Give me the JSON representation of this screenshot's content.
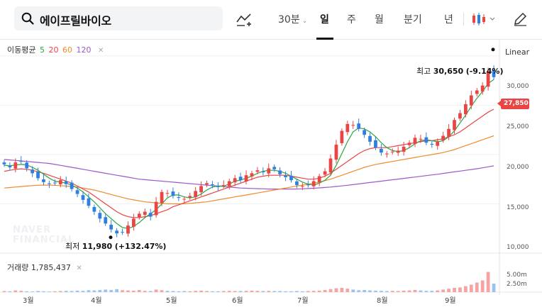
{
  "search": {
    "query": "에이프릴바이오"
  },
  "toolbar": {
    "interval_label": "30분",
    "periods": [
      "일",
      "주",
      "월",
      "분기",
      "년"
    ],
    "active_period": "일",
    "icons": [
      "chart-drawing-icon",
      "candlestick-icon",
      "pencil-icon"
    ]
  },
  "legend": {
    "ma_title": "이동평균",
    "ma_periods": [
      {
        "label": "5",
        "color": "#2aa63f"
      },
      {
        "label": "20",
        "color": "#e94545"
      },
      {
        "label": "60",
        "color": "#f08b2c"
      },
      {
        "label": "120",
        "color": "#9b59c9"
      }
    ],
    "volume_label": "거래량 1,785,437"
  },
  "scale_mode": "Linear",
  "current_price": "27,850",
  "annotations": {
    "high": {
      "label": "최고",
      "value": "30,650",
      "change": "(-9.14%)"
    },
    "low": {
      "label": "최저",
      "value": "11,980",
      "change": "(+132.47%)"
    }
  },
  "watermark": [
    "NAVER",
    "FINANCIAL"
  ],
  "colors": {
    "up": "#e94545",
    "down": "#2f7fe0",
    "accent": "#e94545"
  },
  "chart_data": {
    "type": "candlestick",
    "y_ticks": [
      "30,000",
      "25,000",
      "20,000",
      "15,000",
      "10,000"
    ],
    "y_range": [
      10000,
      31000
    ],
    "volume_ticks": [
      "5.00m",
      "2.50m"
    ],
    "x_ticks": [
      "3월",
      "4월",
      "5월",
      "6월",
      "7월",
      "8월",
      "9월"
    ],
    "close_series": [
      19000,
      18700,
      19200,
      19300,
      18600,
      18100,
      17600,
      17200,
      17000,
      17100,
      17400,
      17000,
      16500,
      16000,
      15400,
      14800,
      14200,
      13500,
      13000,
      12400,
      12000,
      12100,
      12800,
      13500,
      14000,
      14200,
      13700,
      15200,
      16200,
      16100,
      15800,
      15600,
      15500,
      15800,
      16300,
      16800,
      17100,
      16900,
      16700,
      16900,
      17300,
      17600,
      17400,
      17900,
      18100,
      18400,
      18200,
      18600,
      18500,
      18000,
      17700,
      17400,
      16900,
      16800,
      16900,
      17300,
      17800,
      18300,
      19600,
      21000,
      22400,
      23100,
      23000,
      22600,
      22000,
      21300,
      20700,
      20200,
      20100,
      20300,
      20400,
      20800,
      21200,
      21700,
      21600,
      21200,
      21000,
      21300,
      21900,
      22600,
      23500,
      24200,
      25100,
      26000,
      26500,
      27000,
      28400,
      27850
    ],
    "ma": {
      "5": [
        18900,
        18850,
        18950,
        19000,
        18950,
        18700,
        18400,
        18000,
        17600,
        17300,
        17200,
        17100,
        16900,
        16600,
        16200,
        15700,
        15200,
        14600,
        14000,
        13500,
        13000,
        12600,
        12500,
        12700,
        13100,
        13600,
        14000,
        14400,
        15000,
        15600,
        15900,
        15900,
        15700,
        15600,
        15700,
        16000,
        16400,
        16700,
        16800,
        16800,
        17000,
        17300,
        17400,
        17600,
        17800,
        18100,
        18300,
        18400,
        18400,
        18300,
        18100,
        17800,
        17500,
        17200,
        17000,
        16900,
        17100,
        17400,
        17900,
        18900,
        20100,
        21300,
        22300,
        22700,
        22600,
        22300,
        21800,
        21200,
        20700,
        20400,
        20300,
        20400,
        20700,
        21100,
        21400,
        21500,
        21400,
        21300,
        21400,
        21800,
        22400,
        23200,
        24000,
        24900,
        25700,
        26400,
        27200,
        27600
      ],
      "20": [
        18300,
        18400,
        18500,
        18550,
        18500,
        18400,
        18250,
        18100,
        17900,
        17700,
        17500,
        17300,
        17100,
        16800,
        16500,
        16200,
        15800,
        15400,
        15000,
        14600,
        14200,
        13900,
        13700,
        13600,
        13600,
        13700,
        13800,
        14000,
        14200,
        14400,
        14700,
        14900,
        15100,
        15300,
        15500,
        15700,
        15900,
        16100,
        16300,
        16500,
        16700,
        16900,
        17100,
        17300,
        17500,
        17700,
        17800,
        17900,
        17900,
        17900,
        17900,
        17800,
        17700,
        17600,
        17500,
        17500,
        17600,
        17800,
        18100,
        18500,
        18900,
        19300,
        19700,
        20100,
        20400,
        20600,
        20700,
        20700,
        20700,
        20800,
        20900,
        21000,
        21100,
        21200,
        21300,
        21400,
        21400,
        21500,
        21600,
        21800,
        22000,
        22300,
        22700,
        23100,
        23500,
        23900,
        24300,
        24600
      ],
      "60": [
        16600,
        16650,
        16700,
        16750,
        16800,
        16850,
        16880,
        16900,
        16900,
        16880,
        16850,
        16800,
        16750,
        16700,
        16600,
        16500,
        16400,
        16250,
        16100,
        15950,
        15800,
        15650,
        15500,
        15400,
        15300,
        15200,
        15150,
        15100,
        15050,
        15000,
        15000,
        15000,
        15000,
        15050,
        15100,
        15150,
        15200,
        15300,
        15400,
        15500,
        15600,
        15700,
        15800,
        15900,
        16000,
        16100,
        16200,
        16300,
        16400,
        16500,
        16600,
        16700,
        16800,
        16900,
        17000,
        17100,
        17200,
        17350,
        17500,
        17700,
        17900,
        18100,
        18300,
        18500,
        18700,
        18850,
        19000,
        19100,
        19200,
        19300,
        19400,
        19500,
        19600,
        19700,
        19800,
        19900,
        20000,
        20100,
        20200,
        20350,
        20500,
        20700,
        20900,
        21100,
        21300,
        21500,
        21700,
        21900
      ],
      "120": [
        19500,
        19450,
        19400,
        19350,
        19300,
        19250,
        19200,
        19150,
        19100,
        19000,
        18900,
        18800,
        18700,
        18600,
        18500,
        18400,
        18300,
        18200,
        18100,
        18000,
        17900,
        17800,
        17700,
        17600,
        17500,
        17450,
        17400,
        17350,
        17300,
        17250,
        17200,
        17150,
        17100,
        17050,
        17000,
        16950,
        16900,
        16850,
        16800,
        16750,
        16700,
        16650,
        16600,
        16580,
        16560,
        16540,
        16520,
        16500,
        16500,
        16500,
        16500,
        16500,
        16500,
        16520,
        16550,
        16580,
        16620,
        16660,
        16700,
        16760,
        16820,
        16880,
        16950,
        17020,
        17090,
        17160,
        17230,
        17300,
        17370,
        17440,
        17510,
        17580,
        17650,
        17720,
        17790,
        17860,
        17930,
        18000,
        18080,
        18160,
        18240,
        18320,
        18400,
        18480,
        18560,
        18650,
        18750,
        18850
      ]
    },
    "volume_levels": [
      0.05,
      0.04,
      0.08,
      0.06,
      0.04,
      0.03,
      0.05,
      0.04,
      0.03,
      0.04,
      0.05,
      0.06,
      0.05,
      0.07,
      0.06,
      0.09,
      0.08,
      0.1,
      0.12,
      0.1,
      0.14,
      0.09,
      0.08,
      0.07,
      0.1,
      0.06,
      0.05,
      0.12,
      0.09,
      0.06,
      0.05,
      0.04,
      0.05,
      0.04,
      0.06,
      0.07,
      0.05,
      0.04,
      0.04,
      0.05,
      0.06,
      0.05,
      0.05,
      0.06,
      0.07,
      0.06,
      0.05,
      0.06,
      0.05,
      0.05,
      0.04,
      0.04,
      0.05,
      0.04,
      0.05,
      0.06,
      0.07,
      0.1,
      0.14,
      0.18,
      0.2,
      0.16,
      0.12,
      0.09,
      0.1,
      0.08,
      0.07,
      0.06,
      0.05,
      0.06,
      0.05,
      0.07,
      0.08,
      0.1,
      0.08,
      0.06,
      0.06,
      0.08,
      0.12,
      0.16,
      0.2,
      0.22,
      0.28,
      0.35,
      0.45,
      0.55,
      0.95,
      0.4
    ]
  }
}
